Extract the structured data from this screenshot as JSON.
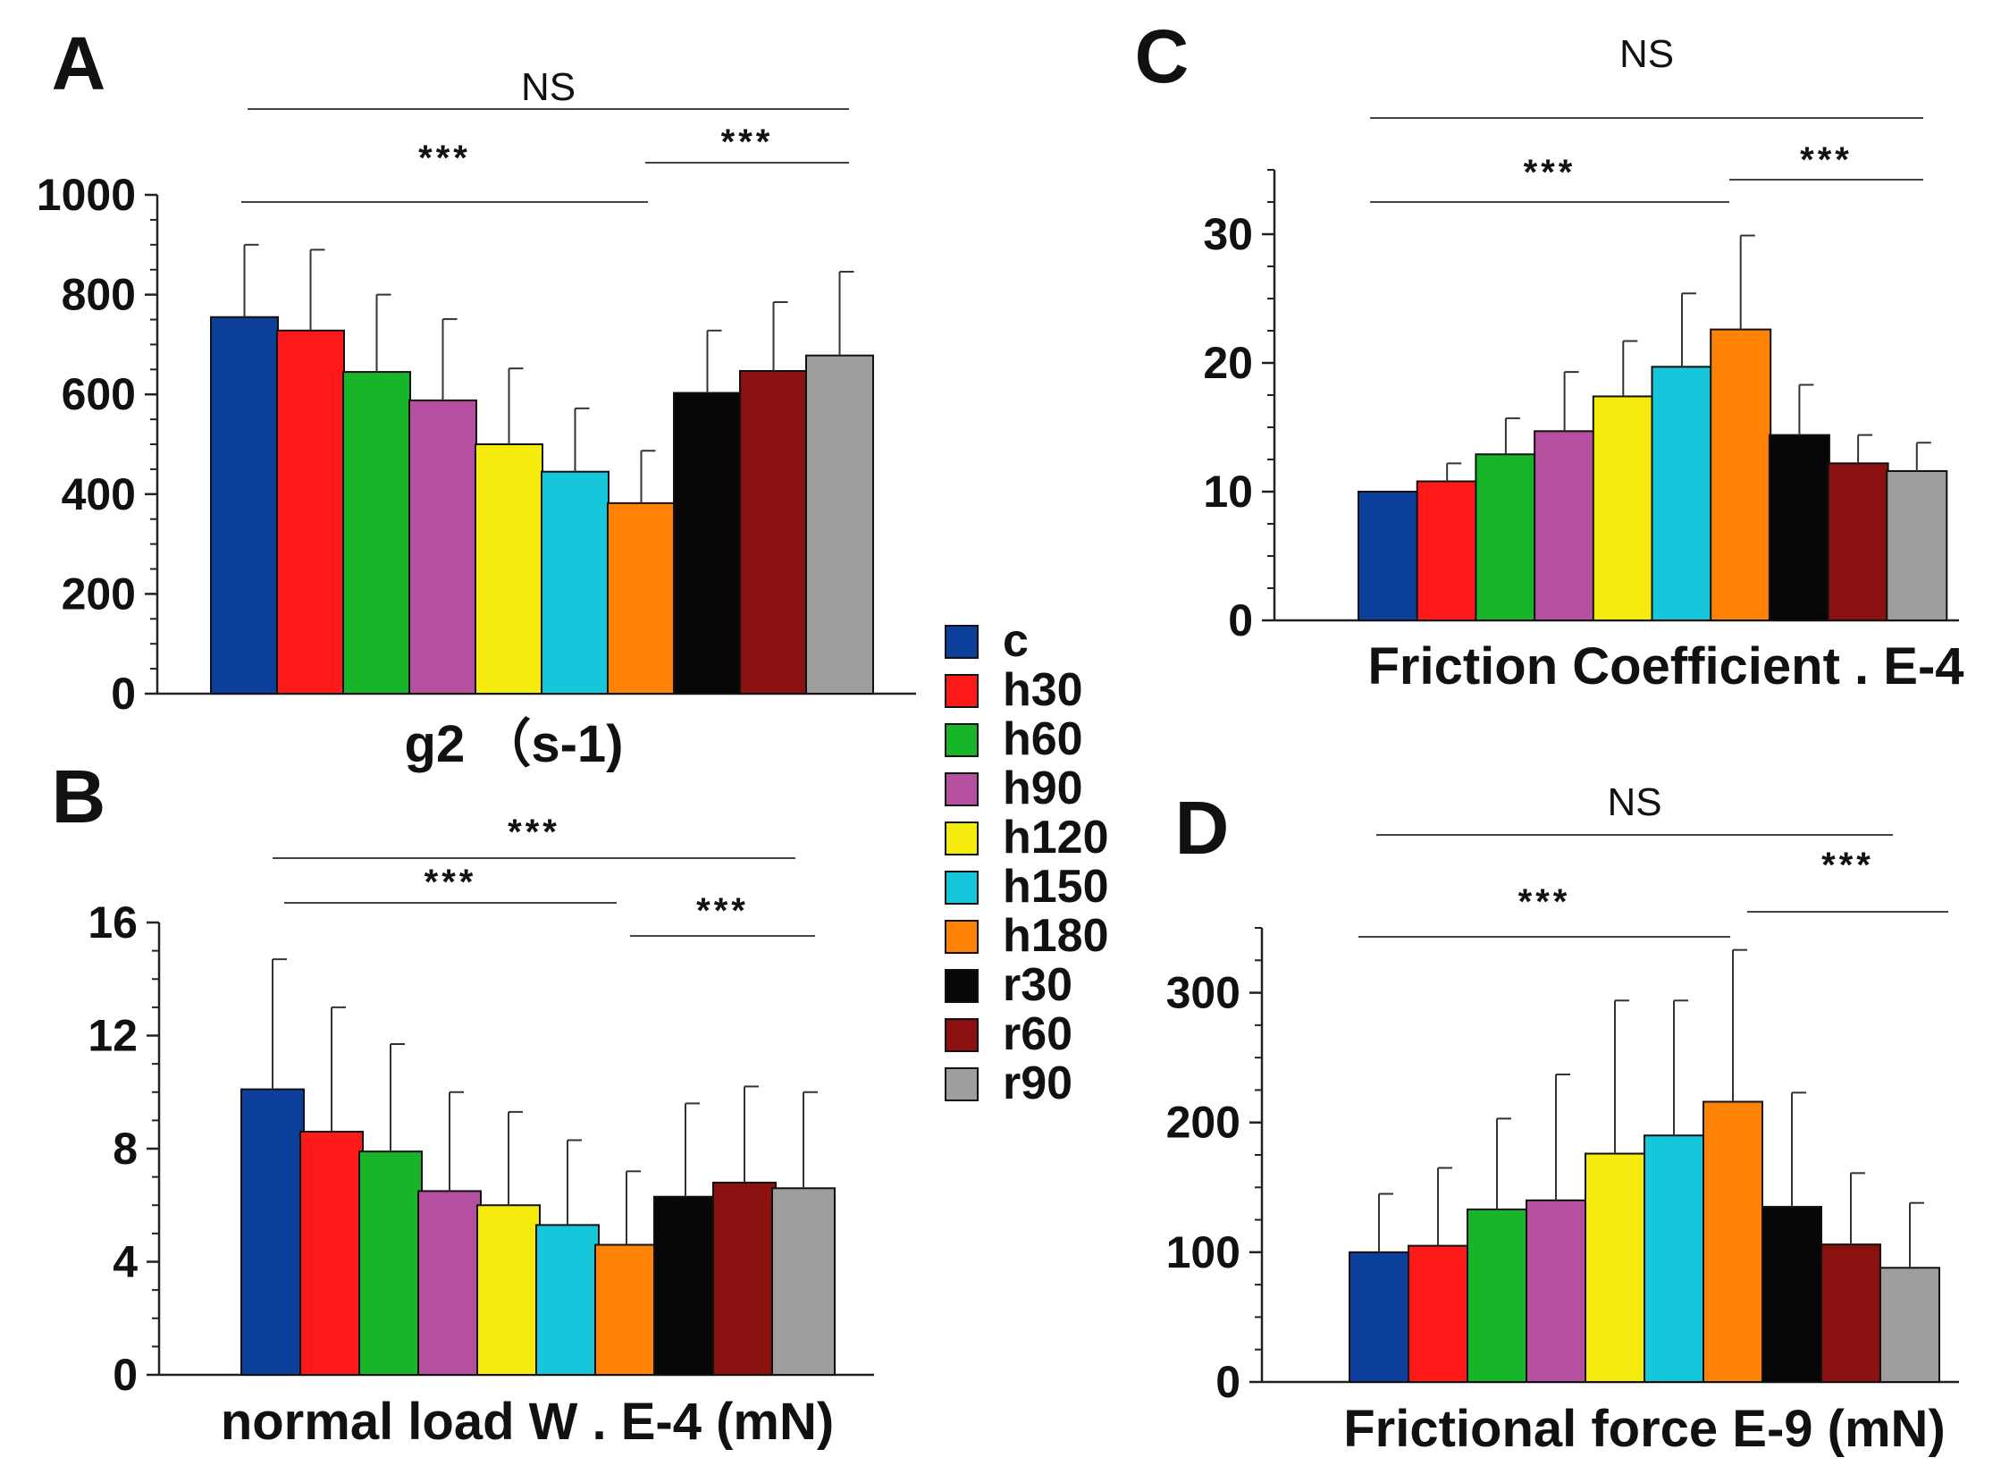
{
  "categories": [
    "c",
    "h30",
    "h60",
    "h90",
    "h120",
    "h150",
    "h180",
    "r30",
    "r60",
    "r90"
  ],
  "colors": [
    "#0b3f9a",
    "#ff1a1a",
    "#17b52a",
    "#b54fa0",
    "#f5eb0d",
    "#16c7dc",
    "#ff8205",
    "#060606",
    "#8b1010",
    "#9e9e9e"
  ],
  "legend": {
    "labels": [
      "c",
      "h30",
      "h60",
      "h90",
      "h120",
      "h150",
      "h180",
      "r30",
      "r60",
      "r90"
    ]
  },
  "chart_data": [
    {
      "panel": "A",
      "type": "bar",
      "title": "",
      "xlabel": "g2 （s-1)",
      "ylabel": "",
      "ylim": [
        0,
        1000
      ],
      "yticks": [
        0,
        200,
        400,
        600,
        800,
        1000
      ],
      "ytick_labels": [
        "0",
        "200",
        "400",
        "600",
        "800",
        "1000"
      ],
      "categories": [
        "c",
        "h30",
        "h60",
        "h90",
        "h120",
        "h150",
        "h180",
        "r30",
        "r60",
        "r90"
      ],
      "values": [
        755,
        728,
        645,
        588,
        500,
        445,
        382,
        603,
        647,
        678
      ],
      "errors": [
        145,
        162,
        155,
        163,
        152,
        127,
        105,
        125,
        138,
        168
      ],
      "annotations": [
        {
          "text": "NS",
          "from": 0,
          "to": 9,
          "level": 1
        },
        {
          "text": "***",
          "from": 0,
          "to": 6,
          "level": 0
        },
        {
          "text": "***",
          "from": 7,
          "to": 9,
          "level": 0
        }
      ]
    },
    {
      "panel": "B",
      "type": "bar",
      "title": "",
      "xlabel": "normal load W  .  E-4  (mN)",
      "ylabel": "",
      "ylim": [
        0,
        16
      ],
      "yticks": [
        0,
        4,
        8,
        12,
        16
      ],
      "ytick_labels": [
        "0",
        "4",
        "8",
        "12",
        "16"
      ],
      "categories": [
        "c",
        "h30",
        "h60",
        "h90",
        "h120",
        "h150",
        "h180",
        "r30",
        "r60",
        "r90"
      ],
      "values": [
        10.1,
        8.6,
        7.9,
        6.5,
        6.0,
        5.3,
        4.6,
        6.3,
        6.8,
        6.6
      ],
      "errors": [
        4.6,
        4.4,
        3.8,
        3.5,
        3.3,
        3.0,
        2.6,
        3.3,
        3.4,
        3.4
      ],
      "annotations": [
        {
          "text": "***",
          "from": 0,
          "to": 9,
          "level": 1
        },
        {
          "text": "***",
          "from": 0,
          "to": 6,
          "level": 0
        },
        {
          "text": "***",
          "from": 7,
          "to": 9,
          "level": 0
        }
      ]
    },
    {
      "panel": "C",
      "type": "bar",
      "title": "",
      "xlabel": "Friction Coefficient . E-4",
      "ylabel": "",
      "ylim": [
        0,
        35
      ],
      "yticks": [
        0,
        10,
        20,
        30
      ],
      "ytick_labels": [
        "0",
        "10",
        "20",
        "30"
      ],
      "categories": [
        "c",
        "h30",
        "h60",
        "h90",
        "h120",
        "h150",
        "h180",
        "r30",
        "r60",
        "r90"
      ],
      "values": [
        10.0,
        10.8,
        12.9,
        14.7,
        17.4,
        19.7,
        22.6,
        14.4,
        12.2,
        11.6
      ],
      "errors": [
        0,
        1.4,
        2.8,
        4.6,
        4.3,
        5.7,
        7.3,
        3.9,
        2.2,
        2.2
      ],
      "annotations": [
        {
          "text": "NS",
          "from": 0,
          "to": 9,
          "level": 1
        },
        {
          "text": "***",
          "from": 0,
          "to": 6,
          "level": 0
        },
        {
          "text": "***",
          "from": 7,
          "to": 9,
          "level": 0
        }
      ]
    },
    {
      "panel": "D",
      "type": "bar",
      "title": "",
      "xlabel": "Frictional force E-9 (mN)",
      "ylabel": "",
      "ylim": [
        0,
        350
      ],
      "yticks": [
        0,
        100,
        200,
        300
      ],
      "ytick_labels": [
        "0",
        "100",
        "200",
        "300"
      ],
      "categories": [
        "c",
        "h30",
        "h60",
        "h90",
        "h120",
        "h150",
        "h180",
        "r30",
        "r60",
        "r90"
      ],
      "values": [
        100,
        105,
        133,
        140,
        176,
        190,
        216,
        135,
        106,
        88
      ],
      "errors": [
        45,
        60,
        70,
        97,
        118,
        104,
        117,
        88,
        55,
        50
      ],
      "annotations": [
        {
          "text": "NS",
          "from": 0,
          "to": 9,
          "level": 1
        },
        {
          "text": "***",
          "from": 0,
          "to": 6,
          "level": 0
        },
        {
          "text": "***",
          "from": 7,
          "to": 9,
          "level": 0
        }
      ]
    }
  ]
}
